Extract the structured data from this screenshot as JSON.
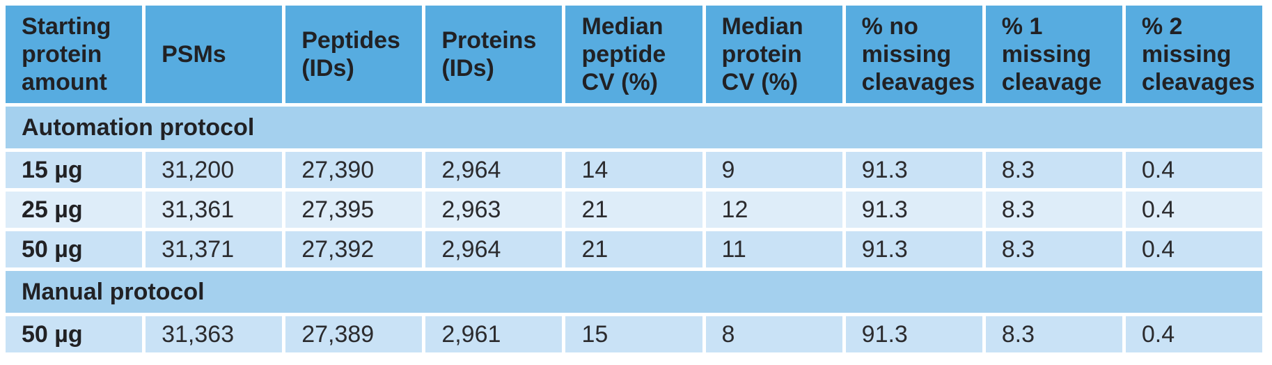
{
  "chart_data": {
    "type": "table",
    "columns": [
      "Starting protein amount",
      "PSMs",
      "Peptides (IDs)",
      "Proteins (IDs)",
      "Median peptide CV (%)",
      "Median protein CV (%)",
      "% no missing cleavages",
      "% 1 missing cleavage",
      "% 2 missing cleavages"
    ],
    "sections": [
      {
        "title": "Automation protocol",
        "rows": [
          {
            "cells": [
              "15 µg",
              "31,200",
              "27,390",
              "2,964",
              "14",
              "9",
              "91.3",
              "8.3",
              "0.4"
            ]
          },
          {
            "cells": [
              "25 µg",
              "31,361",
              "27,395",
              "2,963",
              "21",
              "12",
              "91.3",
              "8.3",
              "0.4"
            ]
          },
          {
            "cells": [
              "50 µg",
              "31,371",
              "27,392",
              "2,964",
              "21",
              "11",
              "91.3",
              "8.3",
              "0.4"
            ]
          }
        ]
      },
      {
        "title": "Manual protocol",
        "rows": [
          {
            "cells": [
              "50 µg",
              "31,363",
              "27,389",
              "2,961",
              "15",
              "8",
              "91.3",
              "8.3",
              "0.4"
            ]
          }
        ]
      }
    ],
    "layout": {
      "grid": "white gaps between cells",
      "header_position": "top",
      "section_bands_span_full_width": true,
      "row_striping": "alternating light blue shades within each section"
    }
  },
  "colors": {
    "header_bg": "#57ace0",
    "section_band_bg": "#a4d0ee",
    "row_stripe_dark": "#c9e2f6",
    "row_stripe_light": "#deedf9",
    "gap": "#ffffff",
    "text": "#212124"
  }
}
